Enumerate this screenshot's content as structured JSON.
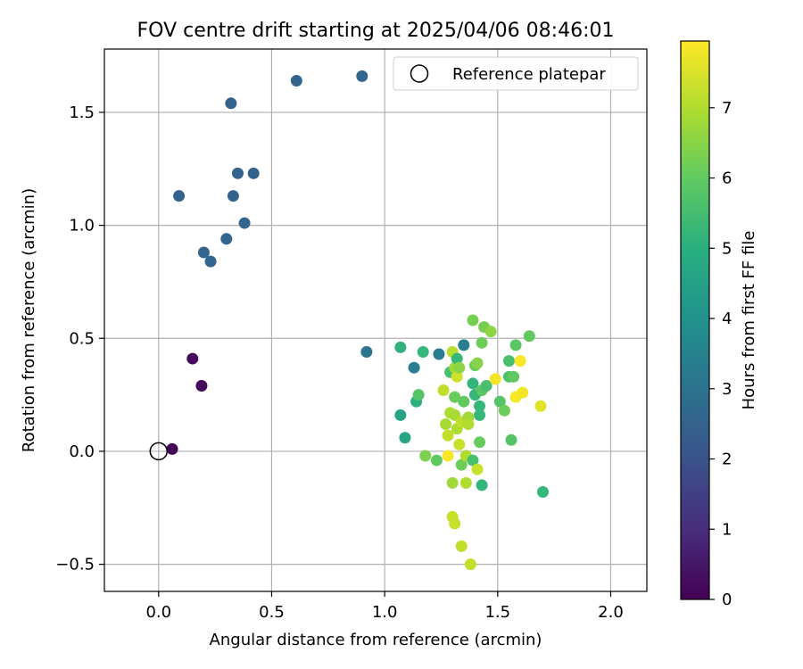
{
  "chart_data": {
    "type": "scatter",
    "title": "FOV centre drift starting at 2025/04/06 08:46:01",
    "xlabel": "Angular distance from reference (arcmin)",
    "ylabel": "Rotation from reference (arcmin)",
    "xlim": [
      -0.24,
      2.16
    ],
    "ylim": [
      -0.62,
      1.78
    ],
    "xticks": [
      0.0,
      0.5,
      1.0,
      1.5,
      2.0
    ],
    "xtick_labels": [
      "0.0",
      "0.5",
      "1.0",
      "1.5",
      "2.0"
    ],
    "yticks": [
      -0.5,
      0.0,
      0.5,
      1.0,
      1.5
    ],
    "ytick_labels": [
      "−0.5",
      "0.0",
      "0.5",
      "1.0",
      "1.5"
    ],
    "grid": true,
    "legend": {
      "placement": "top-right",
      "entries": [
        "Reference platepar"
      ]
    },
    "reference_point": {
      "x": 0.0,
      "y": 0.0,
      "label": "Reference platepar"
    },
    "colorbar": {
      "label": "Hours from first FF file",
      "colormap": "viridis",
      "range": [
        0,
        7.95
      ],
      "ticks": [
        0,
        1,
        2,
        3,
        4,
        5,
        6,
        7
      ],
      "tick_labels": [
        "0",
        "1",
        "2",
        "3",
        "4",
        "5",
        "6",
        "7"
      ]
    },
    "points": [
      {
        "x": 0.06,
        "y": 0.01,
        "hours": 0.05
      },
      {
        "x": 0.15,
        "y": 0.41,
        "hours": 0.2
      },
      {
        "x": 0.19,
        "y": 0.29,
        "hours": 0.15
      },
      {
        "x": 0.09,
        "y": 1.13,
        "hours": 2.5
      },
      {
        "x": 0.2,
        "y": 0.88,
        "hours": 2.6
      },
      {
        "x": 0.23,
        "y": 0.84,
        "hours": 2.6
      },
      {
        "x": 0.3,
        "y": 0.94,
        "hours": 2.6
      },
      {
        "x": 0.32,
        "y": 1.54,
        "hours": 2.5
      },
      {
        "x": 0.33,
        "y": 1.13,
        "hours": 2.5
      },
      {
        "x": 0.35,
        "y": 1.23,
        "hours": 2.5
      },
      {
        "x": 0.38,
        "y": 1.01,
        "hours": 2.6
      },
      {
        "x": 0.42,
        "y": 1.23,
        "hours": 2.5
      },
      {
        "x": 0.61,
        "y": 1.64,
        "hours": 2.6
      },
      {
        "x": 0.9,
        "y": 1.66,
        "hours": 2.6
      },
      {
        "x": 0.92,
        "y": 0.44,
        "hours": 3.1
      },
      {
        "x": 1.07,
        "y": 0.46,
        "hours": 5.1
      },
      {
        "x": 1.07,
        "y": 0.16,
        "hours": 4.6
      },
      {
        "x": 1.09,
        "y": 0.06,
        "hours": 4.7
      },
      {
        "x": 1.13,
        "y": 0.37,
        "hours": 3.4
      },
      {
        "x": 1.14,
        "y": 0.22,
        "hours": 5.0
      },
      {
        "x": 1.15,
        "y": 0.25,
        "hours": 5.8
      },
      {
        "x": 1.17,
        "y": 0.44,
        "hours": 5.3
      },
      {
        "x": 1.18,
        "y": -0.02,
        "hours": 6.4
      },
      {
        "x": 1.23,
        "y": -0.04,
        "hours": 6.0
      },
      {
        "x": 1.24,
        "y": 0.43,
        "hours": 3.3
      },
      {
        "x": 1.26,
        "y": 0.27,
        "hours": 7.2
      },
      {
        "x": 1.27,
        "y": 0.12,
        "hours": 6.9
      },
      {
        "x": 1.28,
        "y": 0.07,
        "hours": 7.2
      },
      {
        "x": 1.28,
        "y": -0.02,
        "hours": 7.9
      },
      {
        "x": 1.29,
        "y": 0.35,
        "hours": 5.6
      },
      {
        "x": 1.29,
        "y": 0.17,
        "hours": 7.0
      },
      {
        "x": 1.3,
        "y": 0.44,
        "hours": 7.1
      },
      {
        "x": 1.3,
        "y": -0.14,
        "hours": 6.8
      },
      {
        "x": 1.3,
        "y": -0.29,
        "hours": 7.3
      },
      {
        "x": 1.31,
        "y": 0.37,
        "hours": 6.8
      },
      {
        "x": 1.31,
        "y": 0.24,
        "hours": 6.1
      },
      {
        "x": 1.31,
        "y": 0.16,
        "hours": 6.9
      },
      {
        "x": 1.31,
        "y": -0.32,
        "hours": 7.3
      },
      {
        "x": 1.32,
        "y": 0.41,
        "hours": 5.3
      },
      {
        "x": 1.32,
        "y": 0.33,
        "hours": 7.4
      },
      {
        "x": 1.32,
        "y": 0.1,
        "hours": 7.0
      },
      {
        "x": 1.33,
        "y": 0.37,
        "hours": 6.6
      },
      {
        "x": 1.33,
        "y": 0.03,
        "hours": 7.3
      },
      {
        "x": 1.34,
        "y": 0.13,
        "hours": 7.2
      },
      {
        "x": 1.34,
        "y": -0.06,
        "hours": 6.2
      },
      {
        "x": 1.34,
        "y": -0.42,
        "hours": 7.2
      },
      {
        "x": 1.35,
        "y": 0.22,
        "hours": 6.0
      },
      {
        "x": 1.35,
        "y": 0.47,
        "hours": 3.4
      },
      {
        "x": 1.36,
        "y": -0.02,
        "hours": 7.0
      },
      {
        "x": 1.36,
        "y": -0.14,
        "hours": 7.0
      },
      {
        "x": 1.37,
        "y": 0.15,
        "hours": 6.8
      },
      {
        "x": 1.37,
        "y": 0.12,
        "hours": 7.0
      },
      {
        "x": 1.38,
        "y": -0.5,
        "hours": 7.2
      },
      {
        "x": 1.39,
        "y": 0.58,
        "hours": 6.3
      },
      {
        "x": 1.39,
        "y": 0.3,
        "hours": 5.2
      },
      {
        "x": 1.39,
        "y": -0.04,
        "hours": 5.6
      },
      {
        "x": 1.4,
        "y": 0.25,
        "hours": 5.3
      },
      {
        "x": 1.4,
        "y": 0.38,
        "hours": 6.1
      },
      {
        "x": 1.41,
        "y": 0.39,
        "hours": 6.5
      },
      {
        "x": 1.41,
        "y": -0.08,
        "hours": 7.3
      },
      {
        "x": 1.42,
        "y": 0.04,
        "hours": 6.1
      },
      {
        "x": 1.42,
        "y": 0.2,
        "hours": 5.3
      },
      {
        "x": 1.42,
        "y": 0.16,
        "hours": 5.3
      },
      {
        "x": 1.43,
        "y": 0.27,
        "hours": 5.9
      },
      {
        "x": 1.43,
        "y": 0.48,
        "hours": 6.2
      },
      {
        "x": 1.43,
        "y": -0.15,
        "hours": 5.2
      },
      {
        "x": 1.44,
        "y": 0.55,
        "hours": 6.3
      },
      {
        "x": 1.45,
        "y": 0.29,
        "hours": 5.6
      },
      {
        "x": 1.47,
        "y": 0.53,
        "hours": 6.6
      },
      {
        "x": 1.49,
        "y": 0.32,
        "hours": 7.8
      },
      {
        "x": 1.51,
        "y": 0.22,
        "hours": 5.8
      },
      {
        "x": 1.53,
        "y": 0.18,
        "hours": 6.2
      },
      {
        "x": 1.55,
        "y": 0.4,
        "hours": 5.6
      },
      {
        "x": 1.55,
        "y": 0.33,
        "hours": 5.7
      },
      {
        "x": 1.56,
        "y": 0.05,
        "hours": 5.8
      },
      {
        "x": 1.57,
        "y": 0.33,
        "hours": 6.0
      },
      {
        "x": 1.58,
        "y": 0.47,
        "hours": 5.9
      },
      {
        "x": 1.58,
        "y": 0.24,
        "hours": 7.9
      },
      {
        "x": 1.6,
        "y": 0.4,
        "hours": 7.9
      },
      {
        "x": 1.61,
        "y": 0.26,
        "hours": 7.8
      },
      {
        "x": 1.64,
        "y": 0.51,
        "hours": 6.0
      },
      {
        "x": 1.69,
        "y": 0.2,
        "hours": 7.6
      },
      {
        "x": 1.7,
        "y": -0.18,
        "hours": 5.3
      }
    ]
  }
}
